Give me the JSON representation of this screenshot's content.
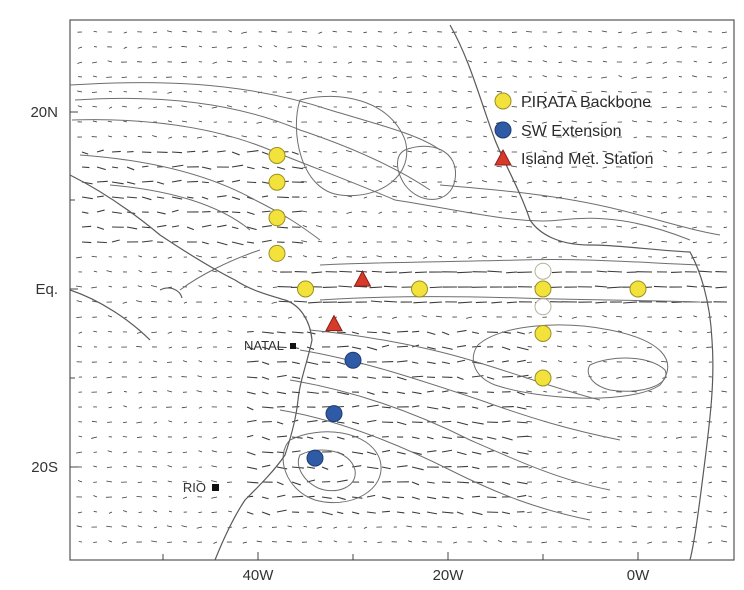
{
  "axes": {
    "x_ticks": [
      "40W",
      "20W",
      "0W"
    ],
    "y_ticks": [
      "20N",
      "Eq.",
      "20S"
    ]
  },
  "cities": [
    {
      "name": "NATAL"
    },
    {
      "name": "RIO"
    }
  ],
  "legend": {
    "backbone": "PIRATA Backbone",
    "extension": "SW Extension",
    "island": "Island Met. Station"
  },
  "colors": {
    "backbone": "#f3e23c",
    "extension": "#2f5aa6",
    "island": "#d83a2a",
    "white_buoy": "#ffffff"
  },
  "stations": {
    "backbone": [
      {
        "lon": -38,
        "lat": 15
      },
      {
        "lon": -38,
        "lat": 12
      },
      {
        "lon": -38,
        "lat": 8
      },
      {
        "lon": -38,
        "lat": 4
      },
      {
        "lon": -35,
        "lat": 0
      },
      {
        "lon": -23,
        "lat": 0
      },
      {
        "lon": -10,
        "lat": 0
      },
      {
        "lon": 0,
        "lat": 0
      },
      {
        "lon": -10,
        "lat": -5
      },
      {
        "lon": -10,
        "lat": -10
      }
    ],
    "backbone_unfilled": [
      {
        "lon": -10,
        "lat": 2
      },
      {
        "lon": -10,
        "lat": -2
      }
    ],
    "extension": [
      {
        "lon": -30,
        "lat": -8
      },
      {
        "lon": -32,
        "lat": -14
      },
      {
        "lon": -34,
        "lat": -19
      }
    ],
    "island": [
      {
        "lon": -29,
        "lat": 1
      },
      {
        "lon": -32,
        "lat": -4
      }
    ]
  }
}
